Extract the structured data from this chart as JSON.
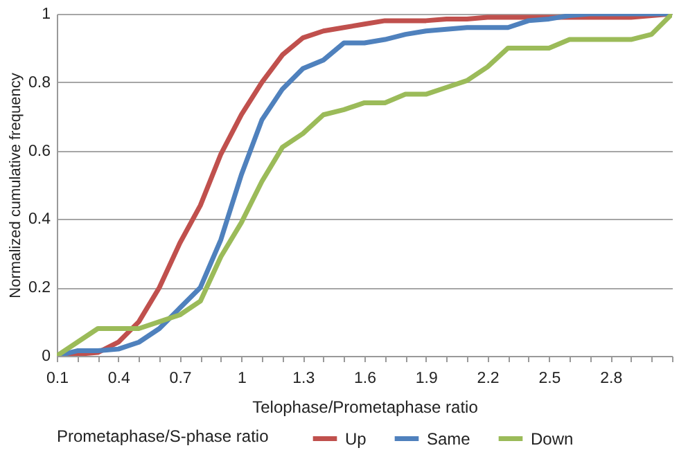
{
  "chart_data": {
    "type": "line",
    "xlabel": "Telophase/Prometaphase ratio",
    "ylabel": "Normalized cumulative frequency",
    "legend_title": "Prometaphase/S-phase ratio",
    "categories": [
      "0.1",
      null,
      null,
      "0.4",
      null,
      null,
      "0.7",
      null,
      null,
      "1",
      null,
      null,
      "1.3",
      null,
      null,
      "1.6",
      null,
      null,
      "1.9",
      null,
      null,
      "2.2",
      null,
      null,
      "2.5",
      null,
      null,
      "2.8",
      null,
      null,
      null
    ],
    "series": [
      {
        "name": "Up",
        "color": "#c0504d",
        "values": [
          0,
          0.005,
          0.01,
          0.04,
          0.1,
          0.2,
          0.33,
          0.44,
          0.59,
          0.705,
          0.8,
          0.88,
          0.93,
          0.95,
          0.96,
          0.97,
          0.98,
          0.98,
          0.98,
          0.985,
          0.985,
          0.99,
          0.99,
          0.99,
          0.99,
          0.99,
          0.99,
          0.99,
          0.99,
          0.995,
          1
        ]
      },
      {
        "name": "Same",
        "color": "#4f81bd",
        "values": [
          0,
          0.015,
          0.015,
          0.02,
          0.04,
          0.08,
          0.14,
          0.2,
          0.34,
          0.53,
          0.69,
          0.78,
          0.84,
          0.865,
          0.915,
          0.915,
          0.925,
          0.94,
          0.95,
          0.955,
          0.96,
          0.96,
          0.96,
          0.98,
          0.985,
          0.995,
          1,
          1,
          1,
          1,
          1
        ]
      },
      {
        "name": "Down",
        "color": "#9bbb59",
        "values": [
          0,
          0.04,
          0.08,
          0.08,
          0.08,
          0.1,
          0.12,
          0.16,
          0.29,
          0.39,
          0.51,
          0.61,
          0.65,
          0.705,
          0.72,
          0.74,
          0.74,
          0.765,
          0.765,
          0.785,
          0.805,
          0.845,
          0.9,
          0.9,
          0.9,
          0.925,
          0.925,
          0.925,
          0.925,
          0.94,
          1
        ]
      }
    ],
    "ylim": [
      0,
      1
    ],
    "yticks": [
      0,
      0.2,
      0.4,
      0.6,
      0.8,
      1
    ],
    "grid": "y",
    "legend": "bottom",
    "marker": "none",
    "line_style": "solid"
  }
}
